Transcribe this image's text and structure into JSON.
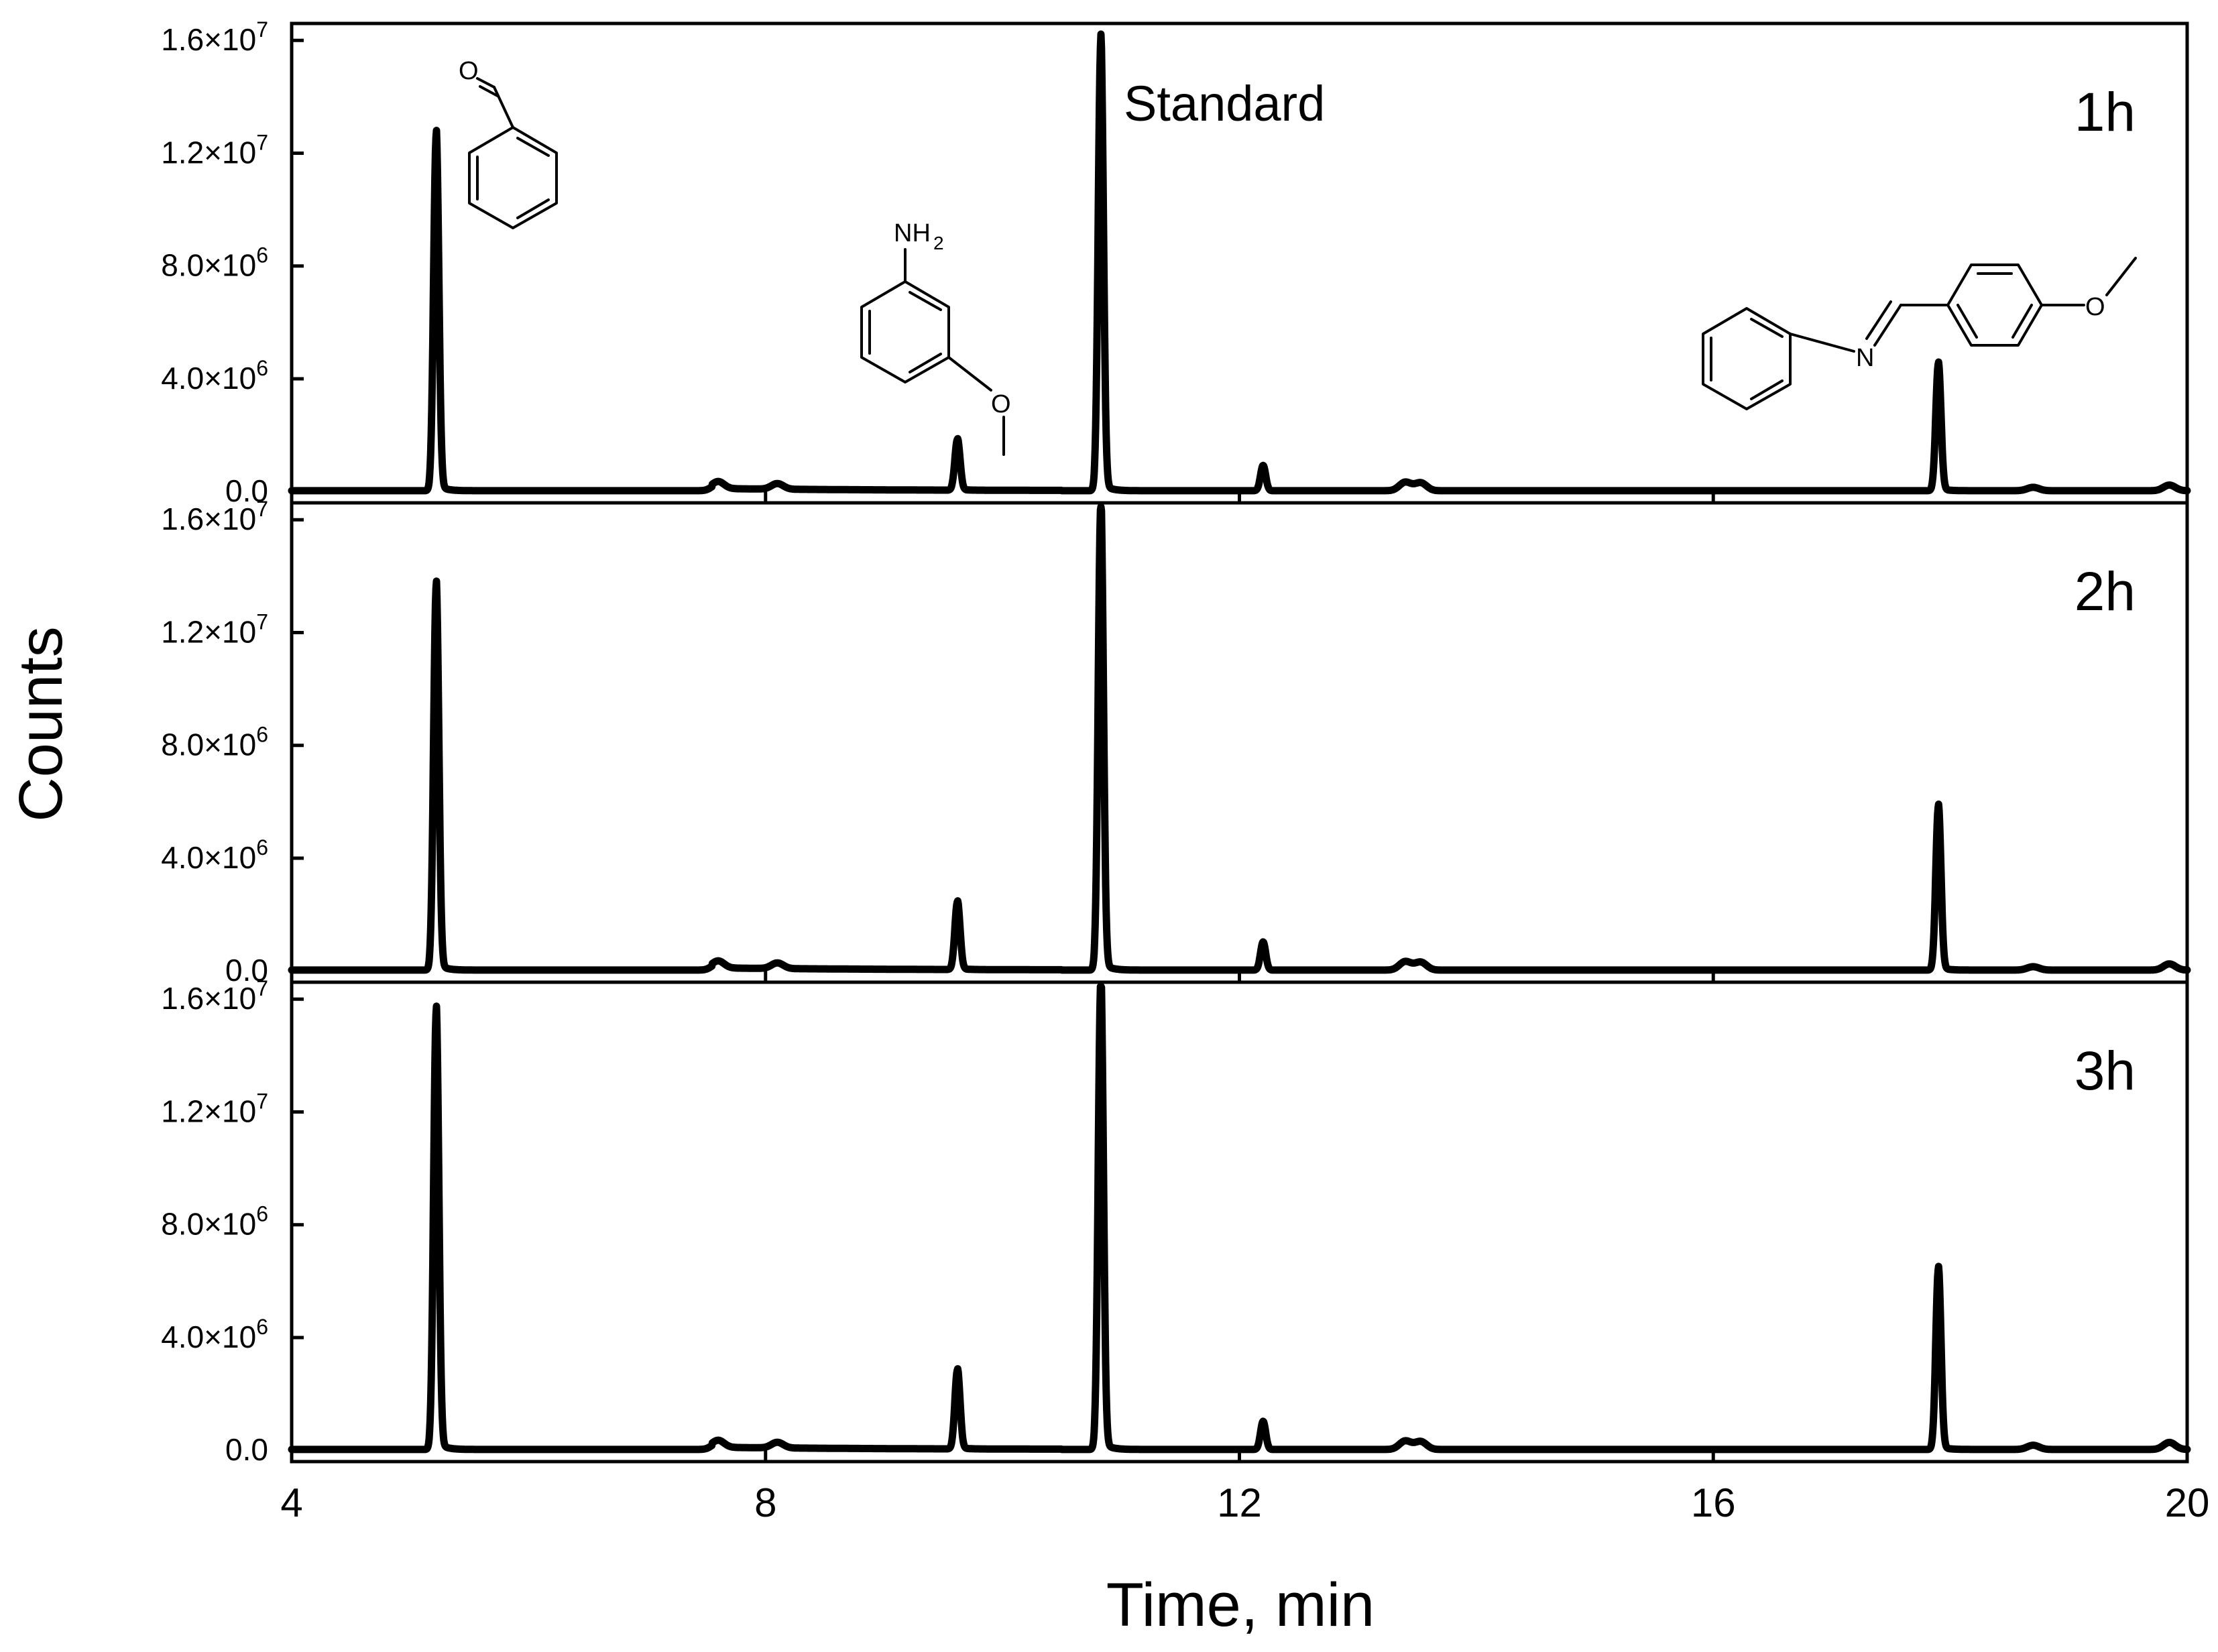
{
  "chart_data": {
    "type": "line",
    "xlabel": "Time, min",
    "ylabel": "Counts",
    "xlim": [
      4,
      20
    ],
    "ylim": [
      -400000,
      16600000
    ],
    "x_ticks": [
      {
        "value": 4,
        "label": "4"
      },
      {
        "value": 8,
        "label": "8"
      },
      {
        "value": 12,
        "label": "12"
      },
      {
        "value": 16,
        "label": "16"
      },
      {
        "value": 20,
        "label": "20"
      }
    ],
    "y_ticks": [
      {
        "value": 0,
        "mantissa": "0.0",
        "times": "",
        "exp": ""
      },
      {
        "value": 4000000,
        "mantissa": "4.0",
        "times": "×10",
        "exp": "6"
      },
      {
        "value": 8000000,
        "mantissa": "8.0",
        "times": "×10",
        "exp": "6"
      },
      {
        "value": 12000000,
        "mantissa": "1.2",
        "times": "×10",
        "exp": "7"
      },
      {
        "value": 16000000,
        "mantissa": "1.6",
        "times": "×10",
        "exp": "7"
      }
    ],
    "grid": false,
    "annotations": {
      "standard": "Standard",
      "aldehyde_o": "O",
      "amine_nh2": "NH",
      "amine_sub": "2",
      "imine_n": "N",
      "ether_o1": "O",
      "ether_o2": "O"
    },
    "panels": [
      {
        "label": "1h",
        "peaks": [
          {
            "x": 5.22,
            "y": 12600000
          },
          {
            "x": 7.6,
            "y": 250000
          },
          {
            "x": 8.1,
            "y": 200000
          },
          {
            "x": 9.62,
            "y": 1800000
          },
          {
            "x": 10.83,
            "y": 15900000
          },
          {
            "x": 12.2,
            "y": 900000
          },
          {
            "x": 13.4,
            "y": 300000
          },
          {
            "x": 13.53,
            "y": 280000
          },
          {
            "x": 17.9,
            "y": 4500000
          },
          {
            "x": 18.7,
            "y": 120000
          },
          {
            "x": 19.85,
            "y": 200000
          }
        ]
      },
      {
        "label": "2h",
        "peaks": [
          {
            "x": 5.22,
            "y": 13600000
          },
          {
            "x": 7.6,
            "y": 250000
          },
          {
            "x": 8.1,
            "y": 200000
          },
          {
            "x": 9.62,
            "y": 2400000
          },
          {
            "x": 10.83,
            "y": 16500000
          },
          {
            "x": 12.2,
            "y": 1000000
          },
          {
            "x": 13.4,
            "y": 300000
          },
          {
            "x": 13.53,
            "y": 280000
          },
          {
            "x": 17.9,
            "y": 5800000
          },
          {
            "x": 18.7,
            "y": 120000
          },
          {
            "x": 19.85,
            "y": 220000
          }
        ]
      },
      {
        "label": "3h",
        "peaks": [
          {
            "x": 5.22,
            "y": 15500000
          },
          {
            "x": 7.6,
            "y": 250000
          },
          {
            "x": 8.1,
            "y": 200000
          },
          {
            "x": 9.62,
            "y": 2800000
          },
          {
            "x": 10.83,
            "y": 16600000
          },
          {
            "x": 12.2,
            "y": 1000000
          },
          {
            "x": 13.4,
            "y": 300000
          },
          {
            "x": 13.53,
            "y": 280000
          },
          {
            "x": 17.9,
            "y": 6400000
          },
          {
            "x": 18.7,
            "y": 150000
          },
          {
            "x": 19.85,
            "y": 250000
          }
        ]
      }
    ]
  }
}
